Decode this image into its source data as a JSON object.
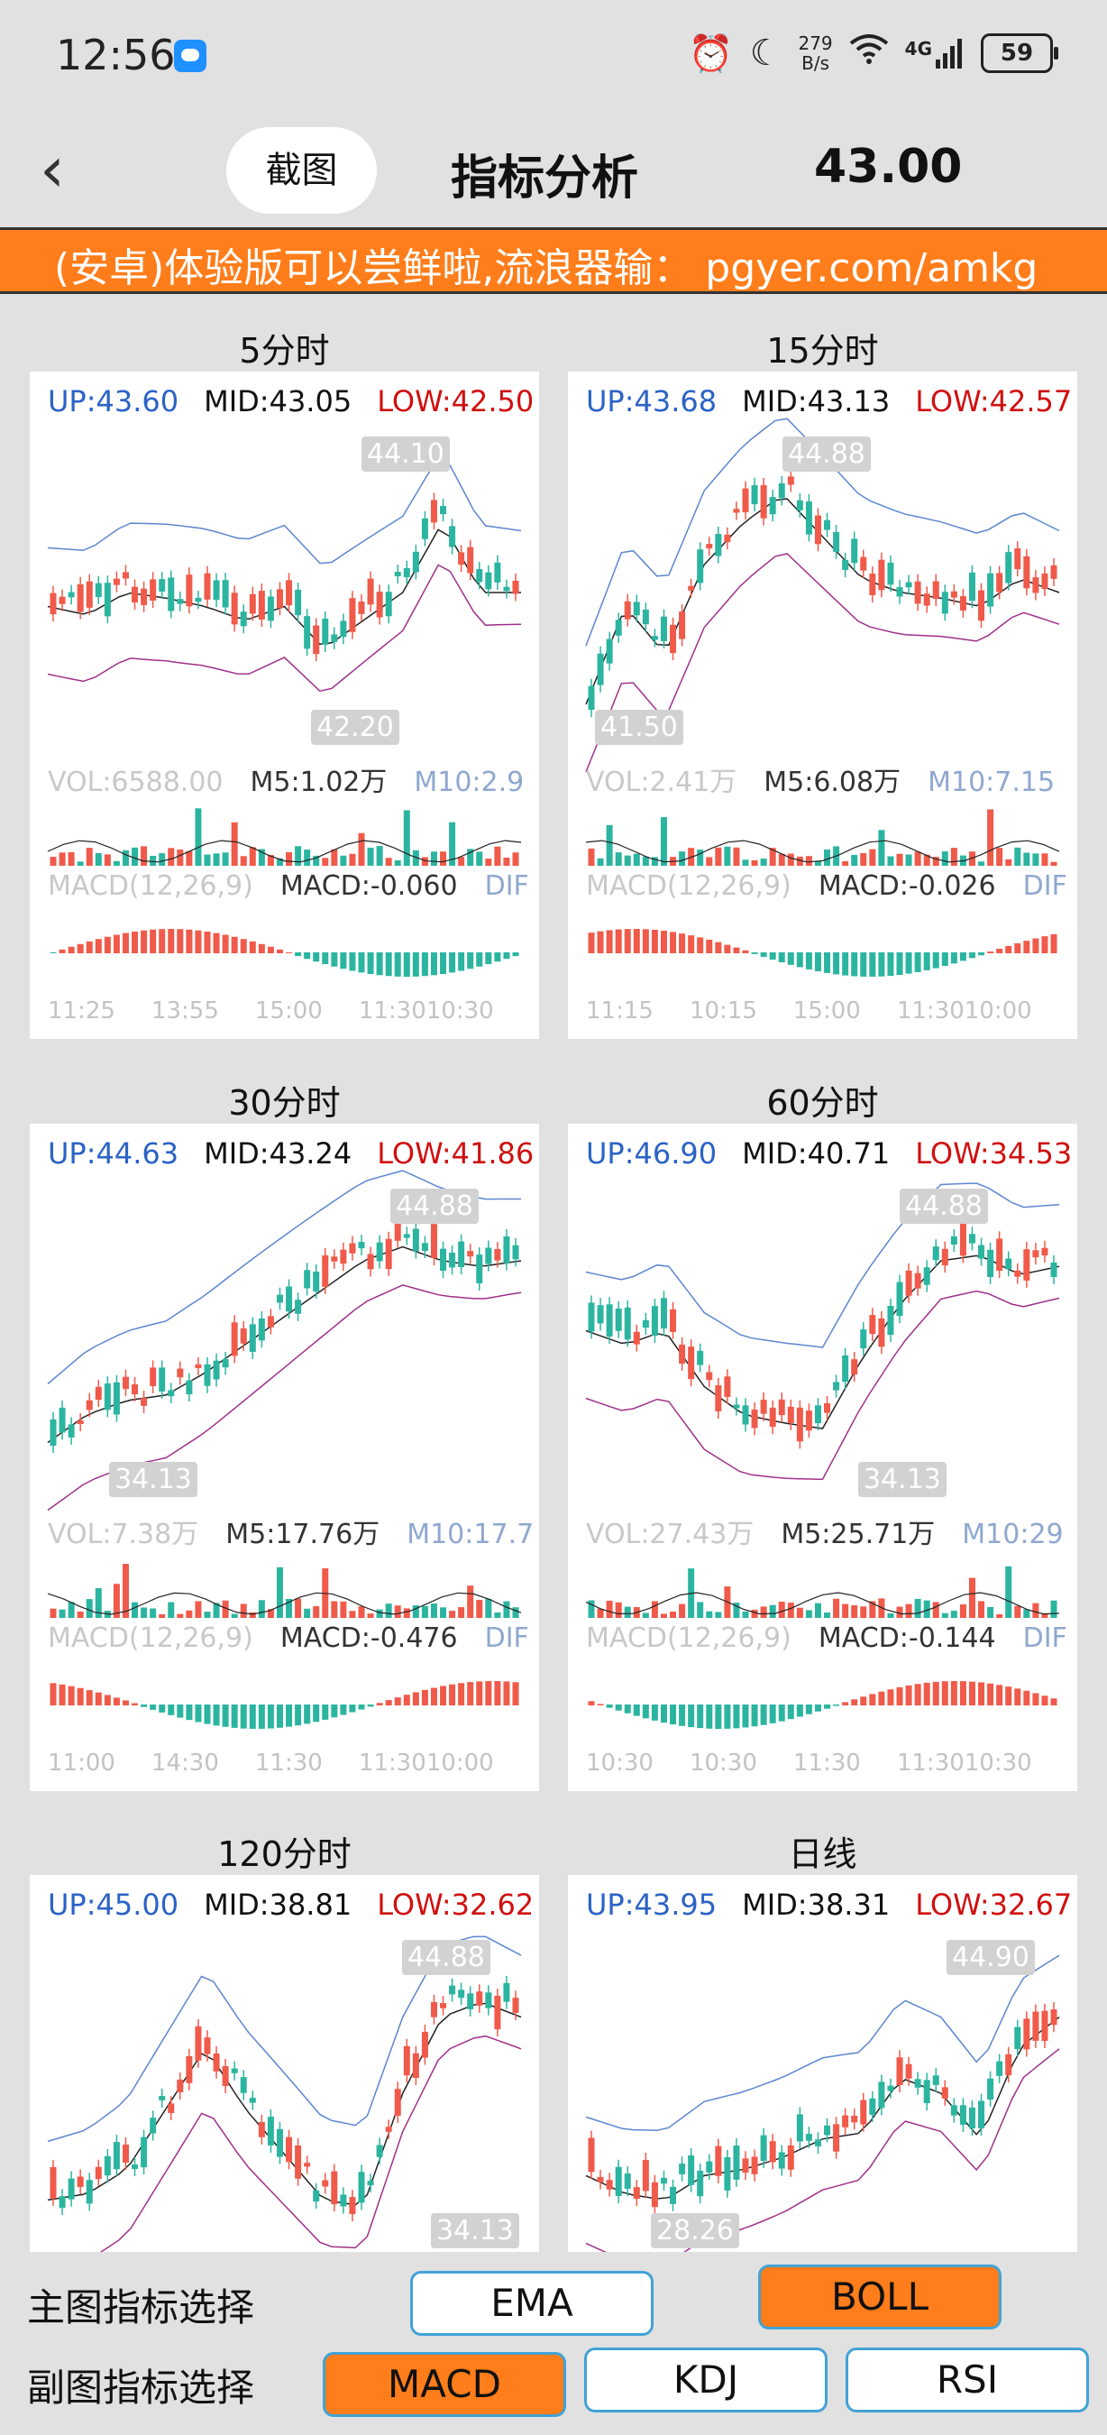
{
  "status_bar": {
    "time": "12:56",
    "net_speed_value": "279",
    "net_speed_unit": "B/s",
    "network": "4G",
    "battery": "59"
  },
  "header": {
    "screenshot_label": "截图",
    "title": "指标分析",
    "price": "43.00"
  },
  "banner": {
    "text": "(安卓)体验版可以尝鲜啦,流浪器输：  pgyer.com/amkg"
  },
  "colors": {
    "accent": "#ff7d1a",
    "up": "#f05a4a",
    "down": "#2bb5a0",
    "upper_band": "#2b63c5",
    "lower_band": "#a0308a"
  },
  "panels": [
    {
      "title": "5分时",
      "up": "UP:43.60",
      "mid": "MID:43.05",
      "low": "LOW:42.50",
      "max_tag": "44.10",
      "min_tag": "42.20",
      "vol": "VOL:6588.00",
      "m5": "M5:1.02万",
      "m10": "M10:2.9",
      "macd_name": "MACD(12,26,9)",
      "macd_val": "MACD:-0.060",
      "macd_dif": "DIF",
      "x_labels": [
        "11:25",
        "13:55",
        "15:00",
        "11:3010:30"
      ]
    },
    {
      "title": "15分时",
      "up": "UP:43.68",
      "mid": "MID:43.13",
      "low": "LOW:42.57",
      "max_tag": "44.88",
      "min_tag": "41.50",
      "vol": "VOL:2.41万",
      "m5": "M5:6.08万",
      "m10": "M10:7.15",
      "macd_name": "MACD(12,26,9)",
      "macd_val": "MACD:-0.026",
      "macd_dif": "DIF",
      "x_labels": [
        "11:15",
        "10:15",
        "15:00",
        "11:3010:00"
      ]
    },
    {
      "title": "30分时",
      "up": "UP:44.63",
      "mid": "MID:43.24",
      "low": "LOW:41.86",
      "max_tag": "44.88",
      "min_tag": "34.13",
      "vol": "VOL:7.38万",
      "m5": "M5:17.76万",
      "m10": "M10:17.7",
      "macd_name": "MACD(12,26,9)",
      "macd_val": "MACD:-0.476",
      "macd_dif": "DIF",
      "x_labels": [
        "11:00",
        "14:30",
        "11:30",
        "11:3010:00"
      ]
    },
    {
      "title": "60分时",
      "up": "UP:46.90",
      "mid": "MID:40.71",
      "low": "LOW:34.53",
      "max_tag": "44.88",
      "min_tag": "34.13",
      "vol": "VOL:27.43万",
      "m5": "M5:25.71万",
      "m10": "M10:29",
      "macd_name": "MACD(12,26,9)",
      "macd_val": "MACD:-0.144",
      "macd_dif": "DIF",
      "x_labels": [
        "10:30",
        "10:30",
        "11:30",
        "11:3010:30"
      ]
    },
    {
      "title": "120分时",
      "up": "UP:45.00",
      "mid": "MID:38.81",
      "low": "LOW:32.62",
      "max_tag": "44.88",
      "min_tag": "34.13"
    },
    {
      "title": "日线",
      "up": "UP:43.95",
      "mid": "MID:38.31",
      "low": "LOW:32.67",
      "max_tag": "44.90",
      "min_tag": "28.26"
    }
  ],
  "selectors": {
    "main_label": "主图指标选择",
    "sub_label": "副图指标选择",
    "main_options": [
      "EMA",
      "BOLL"
    ],
    "main_selected": "BOLL",
    "sub_options": [
      "MACD",
      "KDJ",
      "RSI"
    ],
    "sub_selected": "MACD"
  }
}
